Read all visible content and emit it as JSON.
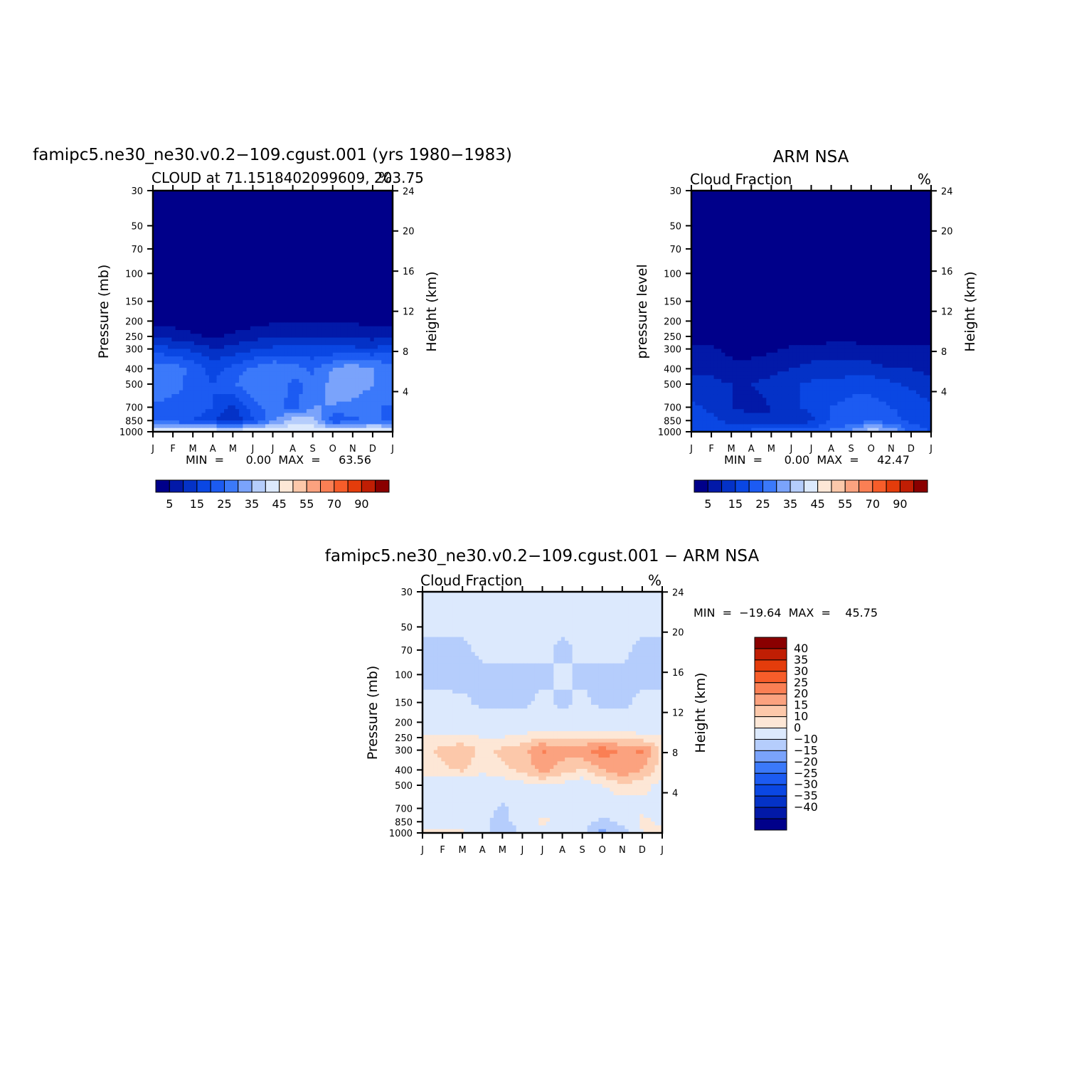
{
  "levels_main": [
    0,
    5,
    10,
    15,
    20,
    25,
    30,
    35,
    40,
    45,
    50,
    55,
    60,
    70,
    80,
    90,
    100
  ],
  "levels_diff": [
    -50,
    -40,
    -35,
    -30,
    -25,
    -20,
    -15,
    -10,
    0,
    10,
    15,
    20,
    25,
    30,
    35,
    40,
    50
  ],
  "colors_main": [
    "#00008a",
    "#0219a8",
    "#0432c7",
    "#0a47e3",
    "#1c5bf2",
    "#3b79fa",
    "#7aa3fb",
    "#b5cdfc",
    "#dce9fd",
    "#fde7d6",
    "#fcc8aa",
    "#fba27f",
    "#fa7f54",
    "#f75d2a",
    "#e43c0b",
    "#c01e04",
    "#8a0000"
  ],
  "colors_diff": [
    "#00008a",
    "#0219a8",
    "#0432c7",
    "#0a47e3",
    "#1c5bf2",
    "#3b79fa",
    "#7aa3fb",
    "#b5cdfc",
    "#dce9fd",
    "#fde7d6",
    "#fcc8aa",
    "#fba27f",
    "#fa7f54",
    "#f75d2a",
    "#e43c0b",
    "#c01e04",
    "#8a0000"
  ],
  "pressure_ticks": [
    "30",
    "50",
    "70",
    "100",
    "150",
    "200",
    "250",
    "300",
    "400",
    "500",
    "700",
    "850",
    "1000"
  ],
  "height_ticks": [
    "24",
    "20",
    "16",
    "12",
    "8",
    "4"
  ],
  "month_ticks": [
    "J",
    "F",
    "M",
    "A",
    "M",
    "J",
    "J",
    "A",
    "S",
    "O",
    "N",
    "D",
    "J"
  ],
  "colorbar_main_labels": [
    "5",
    "15",
    "25",
    "35",
    "45",
    "55",
    "70",
    "90"
  ],
  "colorbar_diff_labels": [
    "40",
    "35",
    "30",
    "25",
    "20",
    "15",
    "10",
    "0",
    "−10",
    "−15",
    "−20",
    "−25",
    "−30",
    "−35",
    "−40"
  ],
  "panels": {
    "model": {
      "title": "famipc5.ne30_ne30.v0.2−109.cgust.001  (yrs  1980−1983)",
      "subtitle_left": "CLOUD  at  71.1518402099609, 203.75",
      "subtitle_right": "%",
      "ylabel_left": "Pressure  (mb)",
      "ylabel_right": "Height  (km)",
      "minmax": "MIN  =      0.00  MAX  =     63.56"
    },
    "obs": {
      "title": "ARM  NSA",
      "subtitle_left": "Cloud  Fraction",
      "subtitle_right": "%",
      "ylabel_left": "pressure  level",
      "ylabel_right": "Height  (km)",
      "minmax": "MIN  =      0.00  MAX  =     42.47"
    },
    "diff": {
      "title": "famipc5.ne30_ne30.v0.2−109.cgust.001  −  ARM  NSA",
      "subtitle_left": "Cloud  Fraction",
      "subtitle_right": "%",
      "ylabel_left": "Pressure  (mb)",
      "ylabel_right": "Height  (km)",
      "minmax": "MIN  =  −19.64  MAX  =    45.75"
    }
  },
  "chart_data": [
    {
      "type": "heatmap",
      "title": "famipc5.ne30_ne30.v0.2−109.cgust.001  (yrs  1980−1983)",
      "subtitle": "CLOUD  at  71.1518402099609, 203.75",
      "units": "%",
      "xlabel": "",
      "ylabel": "Pressure  (mb)",
      "ylabel_right": "Height  (km)",
      "x": [
        "J",
        "F",
        "M",
        "A",
        "M",
        "J",
        "J",
        "A",
        "S",
        "O",
        "N",
        "D",
        "J"
      ],
      "y": [
        1000,
        850,
        700,
        500,
        400,
        300,
        250,
        200,
        150,
        100,
        70,
        50,
        30
      ],
      "values": [
        [
          45,
          45,
          45,
          45,
          45,
          45,
          45,
          45,
          45,
          45,
          45,
          45,
          45
        ],
        [
          24,
          22,
          20,
          16,
          10,
          20,
          28,
          38,
          36,
          20,
          24,
          26,
          24
        ],
        [
          24,
          22,
          24,
          20,
          14,
          22,
          28,
          22,
          30,
          30,
          28,
          26,
          24
        ],
        [
          30,
          28,
          22,
          20,
          24,
          30,
          30,
          24,
          26,
          32,
          34,
          30,
          30
        ],
        [
          28,
          28,
          24,
          18,
          22,
          26,
          30,
          28,
          24,
          30,
          34,
          30,
          28
        ],
        [
          18,
          16,
          14,
          10,
          12,
          14,
          16,
          16,
          16,
          16,
          16,
          16,
          18
        ],
        [
          8,
          8,
          6,
          4,
          6,
          8,
          10,
          10,
          10,
          10,
          10,
          8,
          8
        ],
        [
          3,
          3,
          2,
          1,
          2,
          3,
          4,
          4,
          4,
          4,
          4,
          3,
          3
        ],
        [
          0,
          0,
          0,
          0,
          0,
          0,
          0,
          0,
          0,
          0,
          0,
          0,
          0
        ],
        [
          0,
          0,
          0,
          0,
          0,
          0,
          0,
          0,
          0,
          0,
          0,
          0,
          0
        ],
        [
          0,
          0,
          0,
          0,
          0,
          0,
          0,
          0,
          0,
          0,
          0,
          0,
          0
        ],
        [
          0,
          0,
          0,
          0,
          0,
          0,
          0,
          0,
          0,
          0,
          0,
          0,
          0
        ],
        [
          0,
          0,
          0,
          0,
          0,
          0,
          0,
          0,
          0,
          0,
          0,
          0,
          0
        ]
      ],
      "min": 0.0,
      "max": 63.56,
      "colorbar_labels": [
        "5",
        "15",
        "25",
        "35",
        "45",
        "55",
        "70",
        "90"
      ]
    },
    {
      "type": "heatmap",
      "title": "ARM  NSA",
      "subtitle": "Cloud  Fraction",
      "units": "%",
      "xlabel": "",
      "ylabel": "pressure  level",
      "ylabel_right": "Height  (km)",
      "x": [
        "J",
        "F",
        "M",
        "A",
        "M",
        "J",
        "J",
        "A",
        "S",
        "O",
        "N",
        "D",
        "J"
      ],
      "y": [
        1000,
        850,
        700,
        500,
        400,
        300,
        250,
        200,
        150,
        100,
        70,
        50,
        30
      ],
      "values": [
        [
          20,
          18,
          16,
          22,
          24,
          26,
          22,
          26,
          30,
          40,
          34,
          24,
          20
        ],
        [
          18,
          16,
          14,
          12,
          10,
          12,
          14,
          20,
          22,
          24,
          22,
          18,
          18
        ],
        [
          16,
          14,
          10,
          8,
          10,
          14,
          16,
          20,
          22,
          22,
          20,
          18,
          16
        ],
        [
          12,
          12,
          10,
          10,
          12,
          14,
          16,
          16,
          18,
          18,
          16,
          14,
          12
        ],
        [
          8,
          8,
          6,
          6,
          8,
          10,
          12,
          12,
          12,
          12,
          10,
          10,
          8
        ],
        [
          6,
          6,
          4,
          4,
          4,
          6,
          6,
          8,
          8,
          6,
          6,
          6,
          6
        ],
        [
          2,
          2,
          1,
          1,
          1,
          2,
          2,
          2,
          2,
          2,
          2,
          2,
          2
        ],
        [
          0,
          0,
          0,
          0,
          0,
          0,
          0,
          0,
          0,
          0,
          0,
          0,
          0
        ],
        [
          0,
          0,
          0,
          0,
          0,
          0,
          0,
          0,
          0,
          0,
          0,
          0,
          0
        ],
        [
          0,
          0,
          0,
          0,
          0,
          0,
          0,
          0,
          0,
          0,
          0,
          0,
          0
        ],
        [
          0,
          0,
          0,
          0,
          0,
          0,
          0,
          0,
          0,
          0,
          0,
          0,
          0
        ],
        [
          0,
          0,
          0,
          0,
          0,
          0,
          0,
          0,
          0,
          0,
          0,
          0,
          0
        ],
        [
          0,
          0,
          0,
          0,
          0,
          0,
          0,
          0,
          0,
          0,
          0,
          0,
          0
        ]
      ],
      "min": 0.0,
      "max": 42.47,
      "colorbar_labels": [
        "5",
        "15",
        "25",
        "35",
        "45",
        "55",
        "70",
        "90"
      ]
    },
    {
      "type": "heatmap",
      "title": "famipc5.ne30_ne30.v0.2−109.cgust.001  −  ARM  NSA",
      "subtitle": "Cloud  Fraction",
      "units": "%",
      "xlabel": "",
      "ylabel": "Pressure  (mb)",
      "ylabel_right": "Height  (km)",
      "x": [
        "J",
        "F",
        "M",
        "A",
        "M",
        "J",
        "J",
        "A",
        "S",
        "O",
        "N",
        "D",
        "J"
      ],
      "y": [
        1000,
        850,
        700,
        500,
        400,
        300,
        250,
        200,
        150,
        100,
        70,
        50,
        30
      ],
      "values": [
        [
          12,
          14,
          12,
          4,
          -8,
          2,
          4,
          0,
          2,
          -14,
          -4,
          10,
          12
        ],
        [
          8,
          6,
          4,
          2,
          -4,
          6,
          12,
          8,
          4,
          -2,
          2,
          12,
          8
        ],
        [
          6,
          6,
          8,
          4,
          -2,
          4,
          8,
          2,
          6,
          4,
          6,
          8,
          6
        ],
        [
          8,
          6,
          4,
          4,
          6,
          8,
          10,
          8,
          6,
          10,
          14,
          12,
          8
        ],
        [
          12,
          14,
          16,
          12,
          14,
          16,
          22,
          18,
          14,
          20,
          24,
          20,
          12
        ],
        [
          14,
          16,
          18,
          14,
          16,
          18,
          26,
          22,
          24,
          28,
          24,
          26,
          14
        ],
        [
          12,
          12,
          12,
          10,
          10,
          12,
          14,
          14,
          14,
          14,
          14,
          12,
          12
        ],
        [
          4,
          4,
          4,
          4,
          4,
          4,
          4,
          4,
          4,
          4,
          4,
          4,
          4
        ],
        [
          2,
          2,
          2,
          -2,
          -2,
          -2,
          2,
          -2,
          2,
          -2,
          -2,
          2,
          2
        ],
        [
          -2,
          -2,
          -4,
          -2,
          -2,
          -2,
          -2,
          2,
          -2,
          -2,
          -2,
          -2,
          -2
        ],
        [
          -2,
          -2,
          -2,
          2,
          2,
          2,
          2,
          -2,
          2,
          2,
          2,
          -2,
          -2
        ],
        [
          2,
          2,
          2,
          2,
          2,
          2,
          2,
          2,
          2,
          2,
          2,
          2,
          2
        ],
        [
          2,
          2,
          2,
          2,
          2,
          2,
          2,
          2,
          2,
          2,
          2,
          2,
          2
        ]
      ],
      "min": -19.64,
      "max": 45.75,
      "colorbar_labels": [
        "40",
        "35",
        "30",
        "25",
        "20",
        "15",
        "10",
        "0",
        "−10",
        "−15",
        "−20",
        "−25",
        "−30",
        "−35",
        "−40"
      ]
    }
  ]
}
